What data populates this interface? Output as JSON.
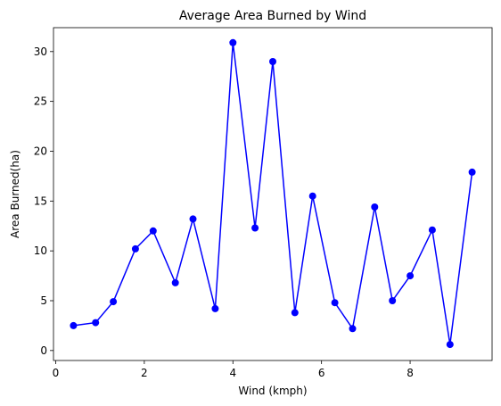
{
  "chart_data": {
    "type": "line",
    "title": "Average Area Burned by Wind",
    "xlabel": "Wind (kmph)",
    "ylabel": "Area Burned(ha)",
    "xlim": [
      -0.05,
      9.85
    ],
    "ylim": [
      -1.0,
      32.4
    ],
    "xticks": [
      0,
      2,
      4,
      6,
      8
    ],
    "yticks": [
      0,
      5,
      10,
      15,
      20,
      25,
      30
    ],
    "grid": false,
    "legend": "none",
    "series": [
      {
        "color": "#0000ff",
        "marker": "circle",
        "x": [
          0.4,
          0.9,
          1.3,
          1.8,
          2.2,
          2.7,
          3.1,
          3.6,
          4.0,
          4.5,
          4.9,
          5.4,
          5.8,
          6.3,
          6.7,
          7.2,
          7.6,
          8.0,
          8.5,
          8.9,
          9.4
        ],
        "y": [
          2.5,
          2.8,
          4.9,
          10.2,
          12.0,
          6.8,
          13.2,
          4.2,
          30.9,
          12.3,
          29.0,
          3.8,
          15.5,
          4.8,
          2.2,
          14.4,
          5.0,
          7.5,
          12.1,
          0.6,
          17.9
        ]
      }
    ]
  }
}
